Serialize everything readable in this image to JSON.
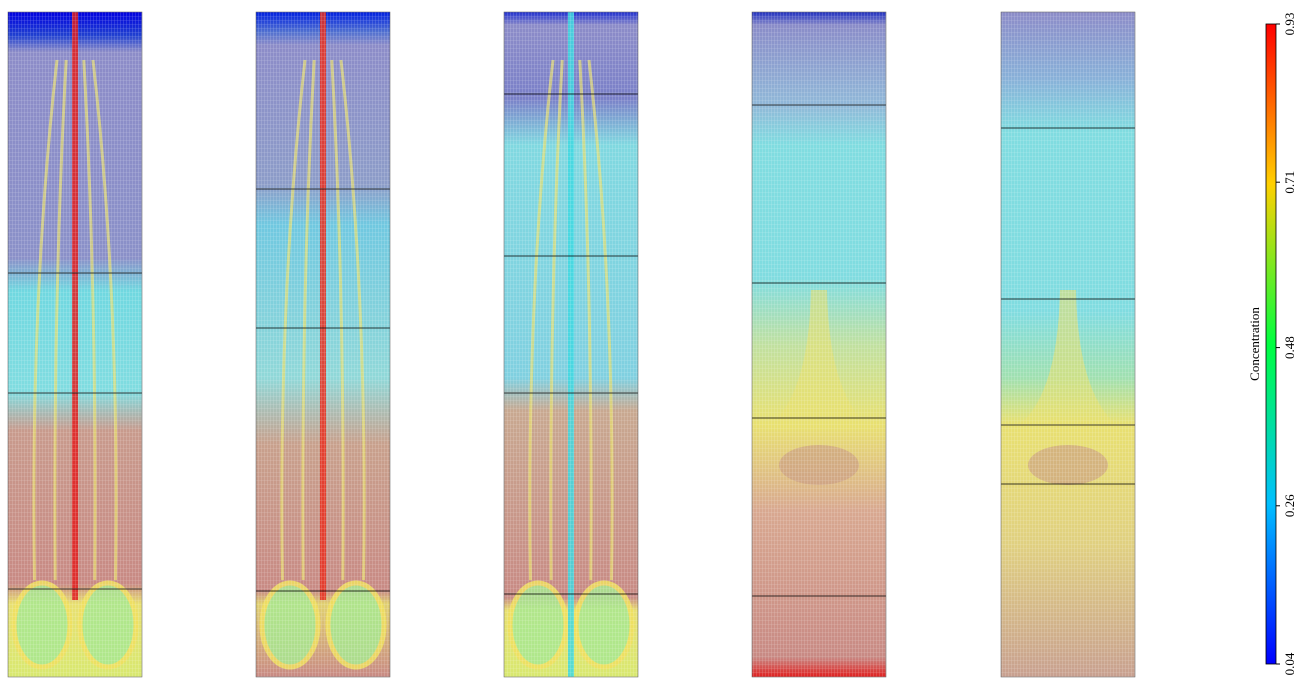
{
  "colorbar": {
    "label": "Concentration",
    "lim": [
      0.04,
      0.93
    ],
    "ticks": [
      0.04,
      0.26,
      0.48,
      0.71,
      0.93
    ]
  }
}
